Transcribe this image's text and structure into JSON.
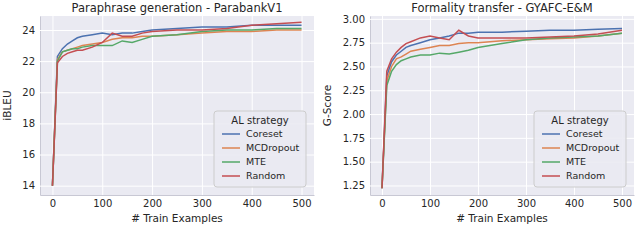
{
  "chart_data": [
    {
      "type": "line",
      "title": "Paraphrase generation - ParabankV1",
      "x_label": "# Train Examples",
      "y_label": "iBLEU",
      "x": [
        0,
        10,
        20,
        30,
        40,
        50,
        60,
        80,
        100,
        120,
        140,
        160,
        180,
        200,
        250,
        300,
        350,
        400,
        450,
        500
      ],
      "xlim": [
        -25,
        525
      ],
      "xticks": [
        0,
        100,
        200,
        300,
        400,
        500
      ],
      "ylim": [
        13.4,
        24.9
      ],
      "yticks": [
        14,
        16,
        18,
        20,
        22,
        24
      ],
      "grid": true,
      "legend": "lower right",
      "legend_title": "AL strategy",
      "series": [
        {
          "name": "Coreset",
          "color": "#4c72b0",
          "values": [
            14.0,
            22.3,
            22.8,
            23.1,
            23.3,
            23.5,
            23.6,
            23.7,
            23.8,
            23.7,
            23.8,
            23.8,
            23.9,
            24.0,
            24.1,
            24.2,
            24.2,
            24.3,
            24.3,
            24.3
          ]
        },
        {
          "name": "MCDropout",
          "color": "#dd8452",
          "values": [
            14.0,
            22.1,
            22.6,
            22.7,
            22.8,
            22.9,
            23.0,
            23.1,
            23.2,
            23.4,
            23.5,
            23.5,
            23.6,
            23.6,
            23.7,
            23.8,
            23.9,
            23.9,
            24.0,
            24.0
          ]
        },
        {
          "name": "MTE",
          "color": "#55a868",
          "values": [
            14.0,
            22.0,
            22.6,
            22.7,
            22.8,
            22.8,
            22.9,
            23.0,
            23.0,
            23.0,
            23.3,
            23.2,
            23.4,
            23.6,
            23.7,
            23.9,
            24.0,
            24.0,
            24.1,
            24.1
          ]
        },
        {
          "name": "Random",
          "color": "#c44e52",
          "values": [
            14.0,
            21.9,
            22.3,
            22.5,
            22.6,
            22.7,
            22.7,
            22.9,
            23.2,
            23.8,
            23.6,
            23.6,
            23.8,
            23.9,
            24.0,
            24.0,
            24.1,
            24.3,
            24.4,
            24.5
          ]
        }
      ]
    },
    {
      "type": "line",
      "title": "Formality transfer - GYAFC-E&M",
      "x_label": "# Train Examples",
      "y_label": "G-Score",
      "x": [
        0,
        10,
        20,
        30,
        40,
        50,
        60,
        80,
        100,
        120,
        140,
        160,
        180,
        200,
        250,
        300,
        350,
        400,
        450,
        500
      ],
      "xlim": [
        -25,
        525
      ],
      "xticks": [
        0,
        100,
        200,
        300,
        400,
        500
      ],
      "ylim": [
        1.15,
        3.03
      ],
      "yticks": [
        1.25,
        {
          "value": 1.5,
          "label": "1.50"
        },
        1.75,
        {
          "value": 2,
          "label": "2.00"
        },
        2.25,
        {
          "value": 2.5,
          "label": "2.50"
        },
        2.75,
        {
          "value": 3,
          "label": "3.00"
        }
      ],
      "grid": true,
      "legend": "lower right",
      "legend_title": "AL strategy",
      "series": [
        {
          "name": "Coreset",
          "color": "#4c72b0",
          "values": [
            1.22,
            2.4,
            2.55,
            2.62,
            2.66,
            2.7,
            2.72,
            2.75,
            2.78,
            2.8,
            2.82,
            2.85,
            2.85,
            2.86,
            2.86,
            2.87,
            2.88,
            2.88,
            2.89,
            2.9
          ]
        },
        {
          "name": "MCDropout",
          "color": "#dd8452",
          "values": [
            1.22,
            2.35,
            2.5,
            2.58,
            2.6,
            2.63,
            2.66,
            2.68,
            2.7,
            2.72,
            2.72,
            2.74,
            2.75,
            2.75,
            2.77,
            2.78,
            2.79,
            2.8,
            2.82,
            2.85
          ]
        },
        {
          "name": "MTE",
          "color": "#55a868",
          "values": [
            1.22,
            2.3,
            2.45,
            2.52,
            2.56,
            2.58,
            2.6,
            2.62,
            2.62,
            2.64,
            2.63,
            2.65,
            2.67,
            2.7,
            2.74,
            2.78,
            2.8,
            2.81,
            2.82,
            2.85
          ]
        },
        {
          "name": "Random",
          "color": "#c44e52",
          "values": [
            1.22,
            2.45,
            2.58,
            2.65,
            2.7,
            2.74,
            2.76,
            2.8,
            2.82,
            2.8,
            2.78,
            2.88,
            2.82,
            2.8,
            2.8,
            2.8,
            2.81,
            2.82,
            2.84,
            2.88
          ]
        }
      ]
    }
  ]
}
